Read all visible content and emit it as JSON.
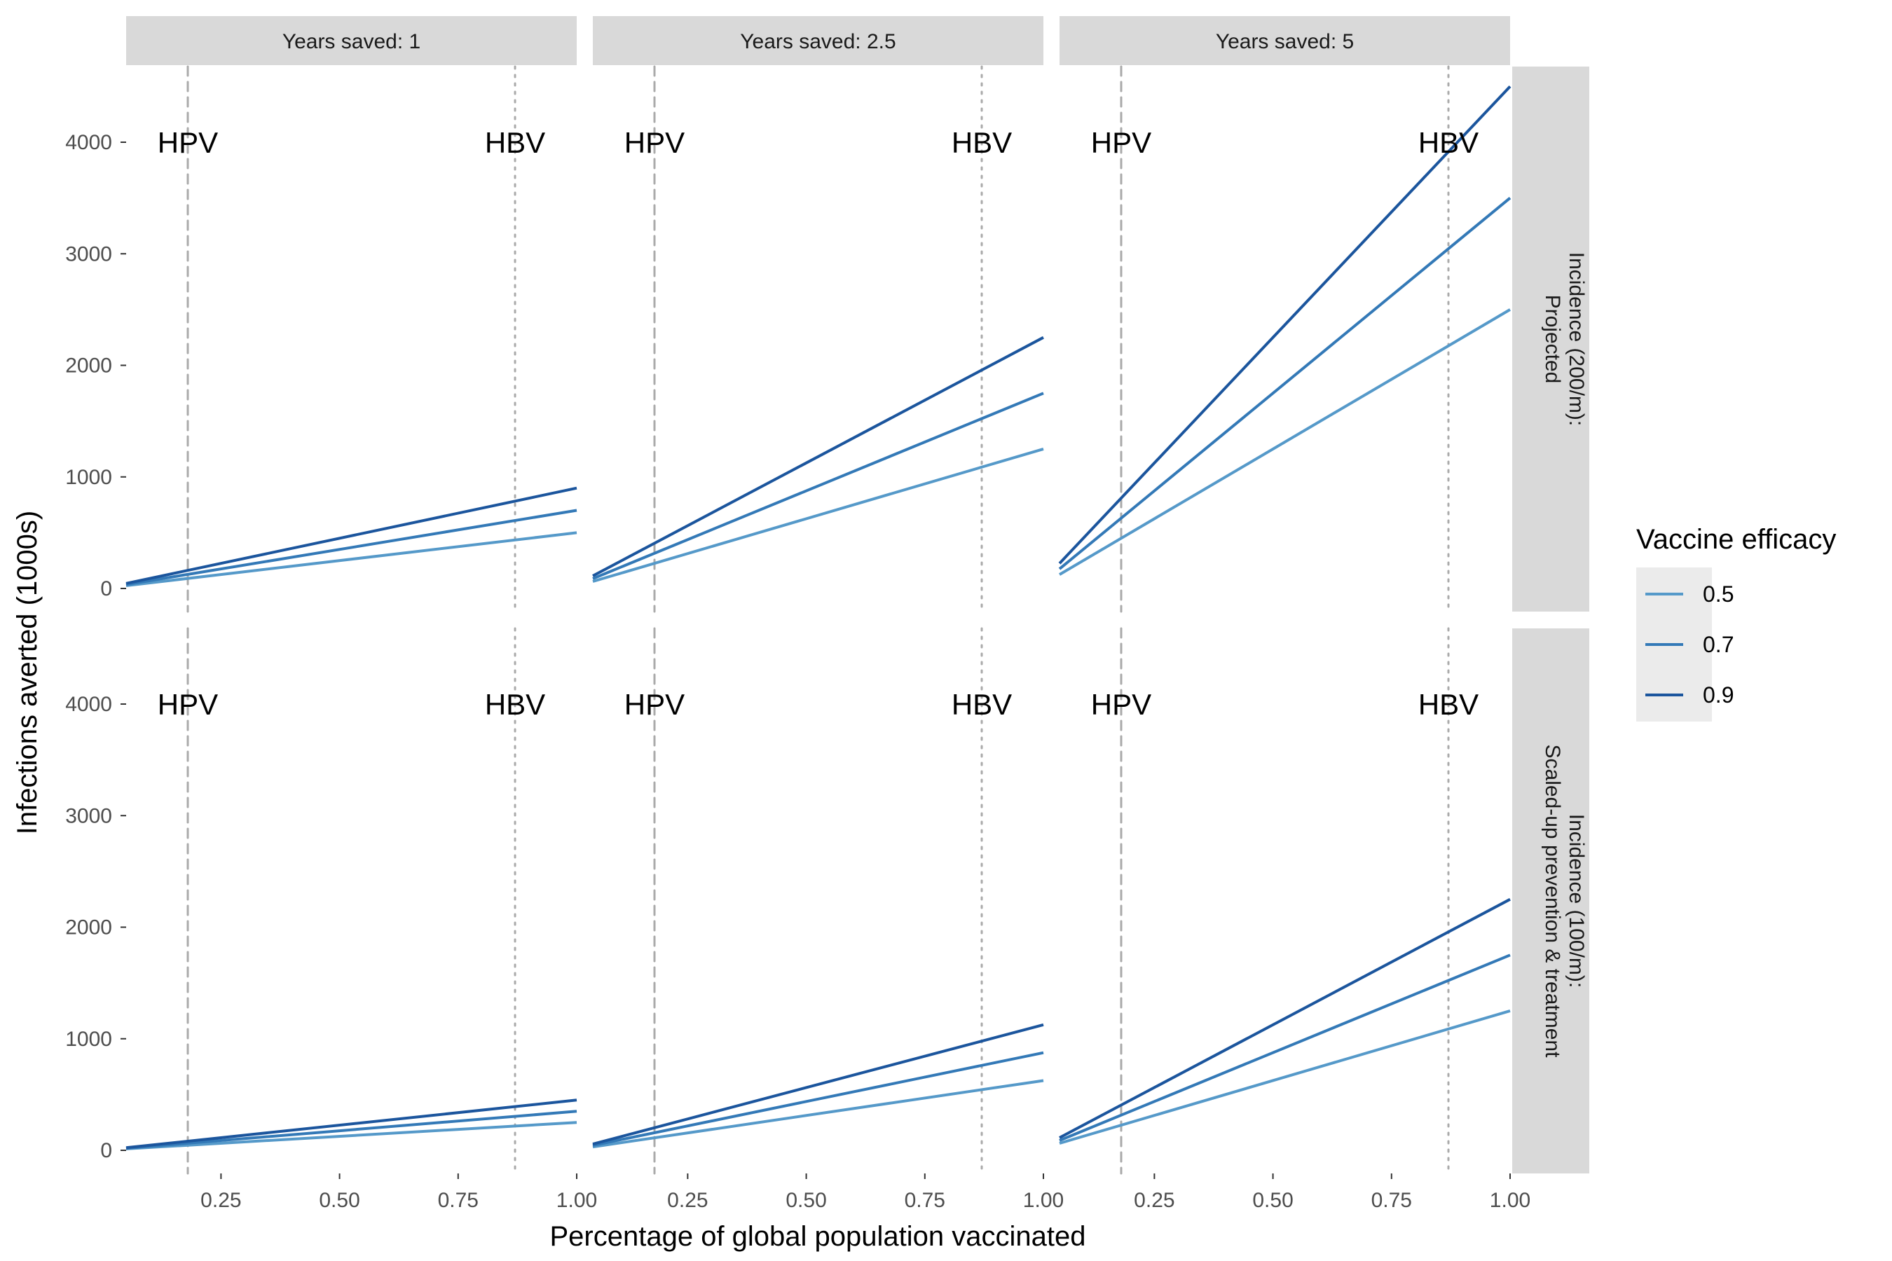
{
  "chart_data": {
    "type": "line",
    "xlabel": "Percentage of global population vaccinated",
    "ylabel": "Infections averted (1000s)",
    "xlim": [
      0.05,
      1.0
    ],
    "ylim": [
      0,
      4500
    ],
    "x_ticks": [
      0.25,
      0.5,
      0.75,
      1.0
    ],
    "x_tick_labels": [
      "0.25",
      "0.50",
      "0.75",
      "1.00"
    ],
    "y_ticks": [
      0,
      1000,
      2000,
      3000,
      4000
    ],
    "y_tick_labels": [
      "0",
      "1000",
      "2000",
      "3000",
      "4000"
    ],
    "grid": false,
    "legend_position": "right",
    "legend": {
      "title": "Vaccine efficacy",
      "entries": [
        {
          "name": "0.5",
          "color": "#5599c9"
        },
        {
          "name": "0.7",
          "color": "#3379b7"
        },
        {
          "name": "0.9",
          "color": "#1b559d"
        }
      ]
    },
    "column_facets": [
      "Years saved: 1",
      "Years saved: 2.5",
      "Years saved: 5"
    ],
    "row_facets": [
      {
        "lines": [
          "Incidence (200/m):",
          "Projected"
        ]
      },
      {
        "lines": [
          "Incidence (100/m):",
          "Scaled-up prevention & treatment"
        ]
      }
    ],
    "reference_lines": [
      {
        "label": "HPV",
        "x": 0.18,
        "style": "dashed",
        "color": "#aaaaaa",
        "label_y": 4000
      },
      {
        "label": "HBV",
        "x": 0.87,
        "style": "dotted",
        "color": "#aaaaaa",
        "label_y": 4000
      }
    ],
    "panels": [
      {
        "row": 0,
        "col": 0,
        "x": [
          0.05,
          1.0
        ],
        "series": [
          {
            "name": "0.5",
            "values": [
              25,
              500
            ]
          },
          {
            "name": "0.7",
            "values": [
              35,
              700
            ]
          },
          {
            "name": "0.9",
            "values": [
              45,
              900
            ]
          }
        ]
      },
      {
        "row": 0,
        "col": 1,
        "x": [
          0.05,
          1.0
        ],
        "series": [
          {
            "name": "0.5",
            "values": [
              63,
              1250
            ]
          },
          {
            "name": "0.7",
            "values": [
              88,
              1750
            ]
          },
          {
            "name": "0.9",
            "values": [
              113,
              2250
            ]
          }
        ]
      },
      {
        "row": 0,
        "col": 2,
        "x": [
          0.05,
          1.0
        ],
        "series": [
          {
            "name": "0.5",
            "values": [
              125,
              2500
            ]
          },
          {
            "name": "0.7",
            "values": [
              175,
              3500
            ]
          },
          {
            "name": "0.9",
            "values": [
              225,
              4500
            ]
          }
        ]
      },
      {
        "row": 1,
        "col": 0,
        "x": [
          0.05,
          1.0
        ],
        "series": [
          {
            "name": "0.5",
            "values": [
              13,
              250
            ]
          },
          {
            "name": "0.7",
            "values": [
              18,
              350
            ]
          },
          {
            "name": "0.9",
            "values": [
              23,
              450
            ]
          }
        ]
      },
      {
        "row": 1,
        "col": 1,
        "x": [
          0.05,
          1.0
        ],
        "series": [
          {
            "name": "0.5",
            "values": [
              31,
              625
            ]
          },
          {
            "name": "0.7",
            "values": [
              44,
              875
            ]
          },
          {
            "name": "0.9",
            "values": [
              56,
              1125
            ]
          }
        ]
      },
      {
        "row": 1,
        "col": 2,
        "x": [
          0.05,
          1.0
        ],
        "series": [
          {
            "name": "0.5",
            "values": [
              63,
              1250
            ]
          },
          {
            "name": "0.7",
            "values": [
              88,
              1750
            ]
          },
          {
            "name": "0.9",
            "values": [
              113,
              2250
            ]
          }
        ]
      }
    ]
  }
}
